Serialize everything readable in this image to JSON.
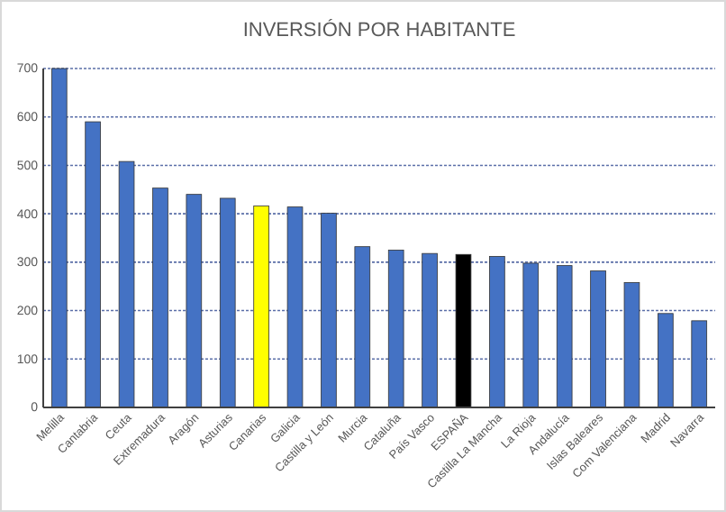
{
  "chart_data": {
    "type": "bar",
    "title": "INVERSIÓN POR HABITANTE",
    "categories": [
      "Melilla",
      "Cantabria",
      "Ceuta",
      "Extremadura",
      "Aragón",
      "Asturias",
      "Canarias",
      "Galicia",
      "Castilla y León",
      "Murcia",
      "Cataluña",
      "País Vasco",
      "ESPAÑA",
      "Castilla La Mancha",
      "La Rioja",
      "Andalucía",
      "Islas Baleares",
      "Com Valenciana",
      "Madrid",
      "Navarra"
    ],
    "values": [
      700,
      590,
      508,
      453,
      440,
      432,
      416,
      414,
      401,
      332,
      325,
      318,
      316,
      312,
      298,
      293,
      282,
      258,
      194,
      179
    ],
    "colors": [
      "#4472c4",
      "#4472c4",
      "#4472c4",
      "#4472c4",
      "#4472c4",
      "#4472c4",
      "#ffff00",
      "#4472c4",
      "#4472c4",
      "#4472c4",
      "#4472c4",
      "#4472c4",
      "#000000",
      "#4472c4",
      "#4472c4",
      "#4472c4",
      "#4472c4",
      "#4472c4",
      "#4472c4",
      "#4472c4"
    ],
    "ylim": [
      0,
      700
    ],
    "yticks": [
      0,
      100,
      200,
      300,
      400,
      500,
      600,
      700
    ],
    "grid": "y"
  }
}
